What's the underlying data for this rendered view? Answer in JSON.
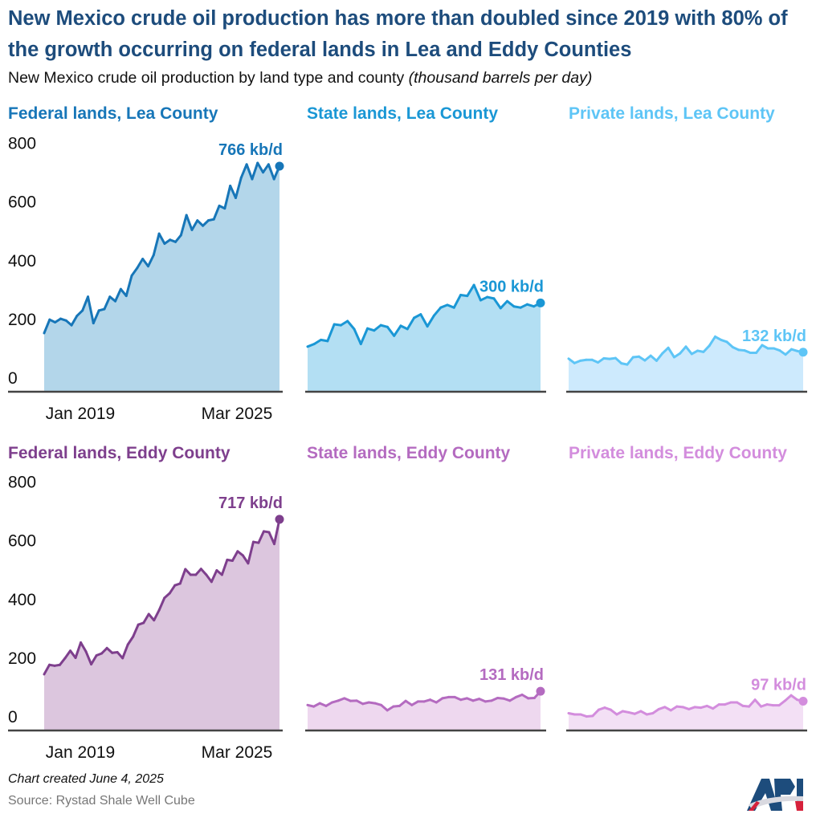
{
  "title": "New Mexico crude oil production has more than doubled since 2019 with 80% of the growth occurring on federal lands in Lea and Eddy Counties",
  "subtitle": "New Mexico crude oil production by land type and county",
  "subtitle_units": "(thousand barrels per day)",
  "footer": {
    "created": "Chart created June 4, 2025",
    "source": "Source: Rystad Shale Well Cube"
  },
  "logo_text": "API",
  "chart_data": [
    {
      "type": "area",
      "title": "Federal lands, Lea County",
      "end_label": "766 kb/d",
      "line_color": "#1776b8",
      "fill_color": "#b3d6ea",
      "ylim": [
        0,
        800
      ],
      "yticks": [
        "800",
        "600",
        "400",
        "200",
        "0"
      ],
      "xticks": [
        "Jan 2019",
        "Mar 2025"
      ],
      "values": [
        197,
        243,
        234,
        246,
        240,
        224,
        256,
        274,
        321,
        231,
        274,
        279,
        321,
        306,
        347,
        324,
        393,
        419,
        450,
        425,
        463,
        536,
        502,
        515,
        508,
        531,
        599,
        549,
        581,
        563,
        581,
        585,
        631,
        622,
        699,
        658,
        727,
        772,
        722,
        777,
        745,
        772,
        722,
        766
      ]
    },
    {
      "type": "area",
      "title": "State lands, Lea County",
      "end_label": "300 kb/d",
      "line_color": "#1a97d5",
      "fill_color": "#b3dff3",
      "ylim": [
        0,
        800
      ],
      "values": [
        151,
        160,
        174,
        170,
        227,
        224,
        238,
        211,
        160,
        213,
        206,
        224,
        218,
        188,
        222,
        211,
        249,
        261,
        220,
        257,
        284,
        293,
        284,
        327,
        324,
        361,
        309,
        320,
        315,
        282,
        306,
        288,
        284,
        295,
        288,
        300
      ]
    },
    {
      "type": "area",
      "title": "Private lands, Lea County",
      "end_label": "132 kb/d",
      "line_color": "#5ec5f6",
      "fill_color": "#cdeafd",
      "ylim": [
        0,
        800
      ],
      "values": [
        110,
        95,
        103,
        106,
        106,
        97,
        111,
        109,
        112,
        94,
        90,
        115,
        117,
        104,
        120,
        103,
        128,
        147,
        115,
        128,
        151,
        126,
        137,
        133,
        154,
        185,
        174,
        167,
        149,
        140,
        138,
        130,
        130,
        156,
        145,
        145,
        138,
        124,
        142,
        136,
        132
      ]
    },
    {
      "type": "area",
      "title": "Federal lands, Eddy County",
      "end_label": "717 kb/d",
      "line_color": "#7e3f8d",
      "fill_color": "#dcc6de",
      "ylim": [
        0,
        800
      ],
      "yticks": [
        "800",
        "600",
        "400",
        "200",
        "0"
      ],
      "xticks": [
        "Jan 2019",
        "Mar 2025"
      ],
      "values": [
        189,
        221,
        218,
        221,
        244,
        269,
        245,
        297,
        266,
        223,
        253,
        260,
        278,
        262,
        264,
        244,
        290,
        317,
        358,
        364,
        394,
        373,
        408,
        449,
        465,
        492,
        498,
        547,
        528,
        528,
        548,
        528,
        504,
        543,
        528,
        579,
        576,
        608,
        594,
        567,
        640,
        637,
        676,
        673,
        633,
        717
      ]
    },
    {
      "type": "area",
      "title": "State lands, Eddy County",
      "end_label": "131 kb/d",
      "line_color": "#b46bc0",
      "fill_color": "#eed8ef",
      "ylim": [
        0,
        800
      ],
      "values": [
        84,
        79,
        90,
        81,
        93,
        99,
        107,
        98,
        99,
        88,
        93,
        90,
        84,
        66,
        79,
        81,
        98,
        84,
        96,
        96,
        102,
        93,
        107,
        111,
        111,
        102,
        107,
        99,
        105,
        96,
        99,
        108,
        106,
        99,
        111,
        119,
        107,
        108,
        131
      ]
    },
    {
      "type": "area",
      "title": "Private lands, Eddy County",
      "end_label": "97 kb/d",
      "line_color": "#d38ddd",
      "fill_color": "#f3e0f5",
      "ylim": [
        0,
        800
      ],
      "values": [
        56,
        52,
        52,
        45,
        47,
        68,
        75,
        68,
        52,
        63,
        59,
        54,
        63,
        52,
        56,
        70,
        77,
        66,
        79,
        77,
        70,
        77,
        75,
        81,
        72,
        86,
        86,
        93,
        93,
        81,
        79,
        102,
        79,
        86,
        83,
        83,
        99,
        117,
        102,
        97
      ]
    }
  ]
}
